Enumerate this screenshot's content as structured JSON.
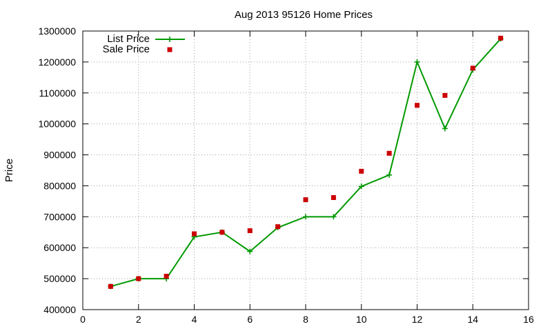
{
  "chart_data": {
    "type": "line",
    "title": "Aug 2013 95126 Home Prices",
    "xlabel": "",
    "ylabel": "Price",
    "xlim": [
      0,
      16
    ],
    "ylim": [
      400000,
      1300000
    ],
    "xticks": [
      0,
      2,
      4,
      6,
      8,
      10,
      12,
      14,
      16
    ],
    "yticks": [
      400000,
      500000,
      600000,
      700000,
      800000,
      900000,
      1000000,
      1100000,
      1200000,
      1300000
    ],
    "grid": true,
    "legend_position": "top-left",
    "series": [
      {
        "name": "List Price",
        "style": "linespoints",
        "marker": "plus",
        "color": "#009900",
        "x": [
          1,
          2,
          3,
          4,
          5,
          6,
          7,
          8,
          9,
          10,
          11,
          12,
          13,
          14,
          15
        ],
        "y": [
          475000,
          500000,
          500000,
          635000,
          650000,
          588000,
          665000,
          700000,
          700000,
          798000,
          835000,
          1200000,
          985000,
          1175000,
          1275000
        ]
      },
      {
        "name": "Sale Price",
        "style": "points",
        "marker": "square",
        "color": "#cc0000",
        "x": [
          1,
          2,
          3,
          4,
          5,
          6,
          7,
          8,
          9,
          10,
          11,
          12,
          13,
          14,
          15
        ],
        "y": [
          475000,
          500000,
          508000,
          645000,
          650000,
          655000,
          668000,
          755000,
          762000,
          847000,
          905000,
          1060000,
          1092000,
          1180000,
          1277000
        ]
      }
    ]
  }
}
